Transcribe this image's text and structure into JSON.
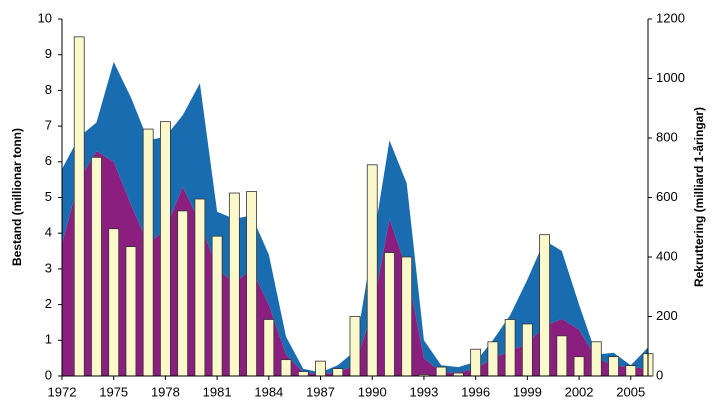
{
  "chart_data": {
    "type": "stacked-area-bar",
    "x": [
      1972,
      1973,
      1974,
      1975,
      1976,
      1977,
      1978,
      1979,
      1980,
      1981,
      1982,
      1983,
      1984,
      1985,
      1986,
      1987,
      1988,
      1989,
      1990,
      1991,
      1992,
      1993,
      1994,
      1995,
      1996,
      1997,
      1998,
      1999,
      2000,
      2001,
      2002,
      2003,
      2004,
      2005,
      2006
    ],
    "series": [
      {
        "color": "#8a1f80",
        "values": [
          3.7,
          5.5,
          6.3,
          6.0,
          4.8,
          3.7,
          4.1,
          5.3,
          4.3,
          3.0,
          2.6,
          3.0,
          2.0,
          0.6,
          0.1,
          0.05,
          0.1,
          0.3,
          1.8,
          4.4,
          3.0,
          0.5,
          0.1,
          0.1,
          0.2,
          0.5,
          0.7,
          0.9,
          1.4,
          1.6,
          1.3,
          0.5,
          0.3,
          0.25,
          0.2
        ]
      },
      {
        "color": "#1a6cb0",
        "values": [
          2.1,
          1.2,
          0.8,
          2.8,
          3.0,
          2.9,
          2.6,
          2.0,
          3.9,
          1.6,
          1.8,
          1.5,
          1.4,
          0.5,
          0.1,
          0.05,
          0.2,
          0.4,
          1.8,
          2.2,
          2.4,
          0.5,
          0.2,
          0.15,
          0.2,
          0.5,
          1.0,
          1.8,
          2.4,
          1.9,
          0.7,
          0.1,
          0.35,
          0.05,
          0.6
        ]
      },
      {
        "color": "#fbf8cc",
        "axis": "y2",
        "values": [
          null,
          1140,
          735,
          495,
          435,
          830,
          855,
          555,
          595,
          470,
          615,
          620,
          190,
          55,
          15,
          50,
          25,
          200,
          710,
          415,
          400,
          5,
          30,
          10,
          90,
          115,
          190,
          175,
          475,
          135,
          65,
          115,
          65,
          35,
          75
        ]
      }
    ],
    "xlim": [
      1972,
      2006
    ],
    "xticks": [
      1972,
      1975,
      1978,
      1981,
      1984,
      1987,
      1990,
      1993,
      1996,
      1999,
      2002,
      2005
    ],
    "ylim": [
      0,
      10
    ],
    "yticks": [
      0,
      1,
      2,
      3,
      4,
      5,
      6,
      7,
      8,
      9,
      10
    ],
    "y2lim": [
      0,
      1200
    ],
    "y2ticks": [
      0,
      200,
      400,
      600,
      800,
      1000,
      1200
    ],
    "y_label": "Bestand (millionar tonn)",
    "y2_label": "Rekruttering (milliard 1-åringar)"
  }
}
